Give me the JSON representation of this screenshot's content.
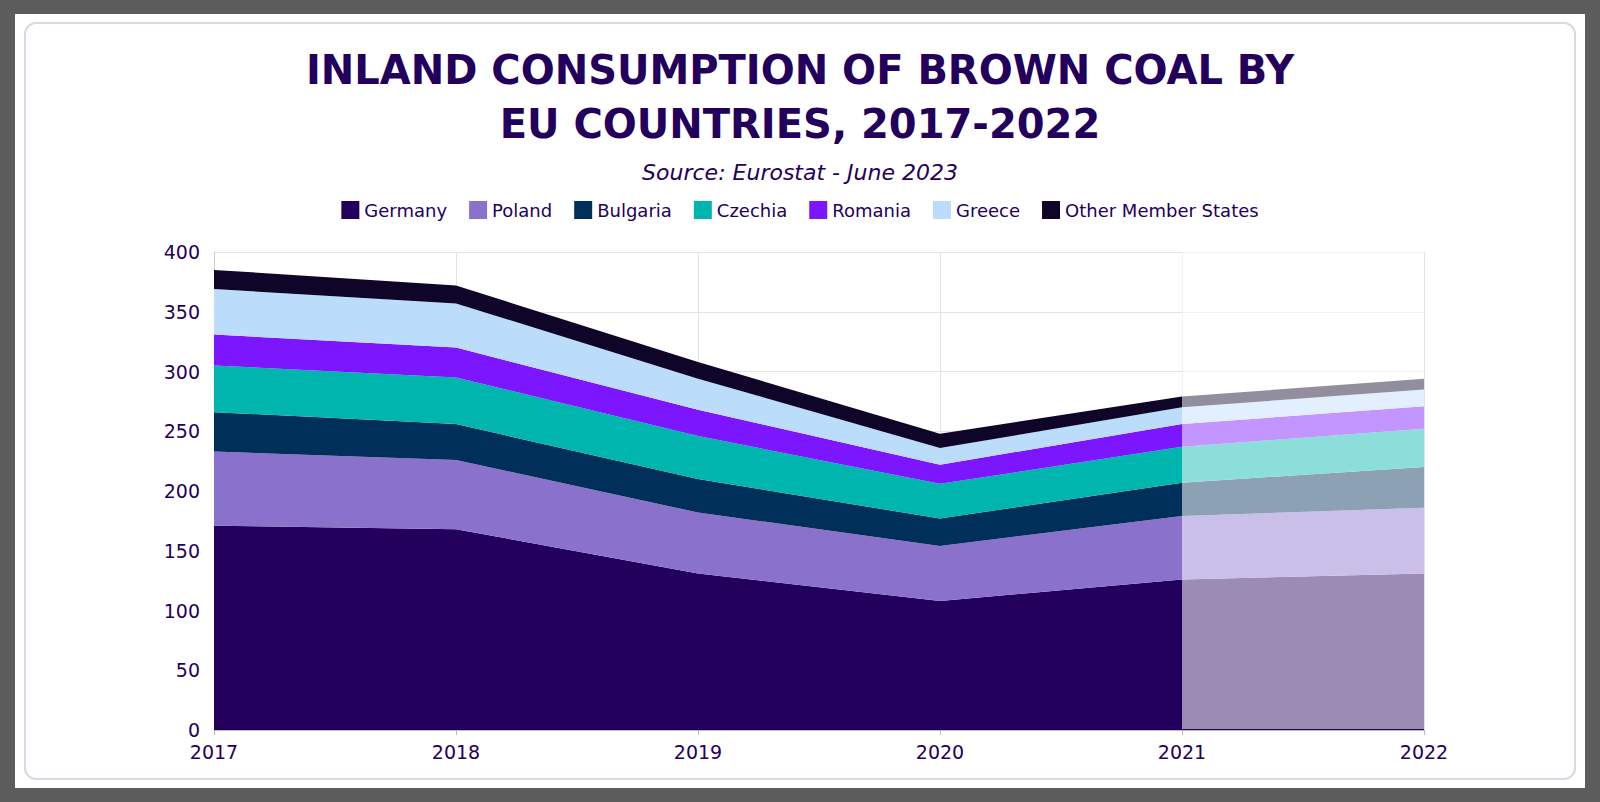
{
  "chart_data": {
    "type": "area",
    "title": "INLAND CONSUMPTION OF BROWN COAL BY\nEU COUNTRIES, 2017-2022",
    "subtitle": "Source: Eurostat - June 2023",
    "categories": [
      "2017",
      "2018",
      "2019",
      "2020",
      "2021",
      "2022"
    ],
    "series": [
      {
        "name": "Germany",
        "color": "#23005c",
        "values": [
          171,
          168,
          131,
          108,
          126,
          131
        ]
      },
      {
        "name": "Poland",
        "color": "#8a72cc",
        "values": [
          62,
          58,
          51,
          46,
          53,
          55
        ]
      },
      {
        "name": "Bulgaria",
        "color": "#00305a",
        "values": [
          33,
          30,
          28,
          23,
          28,
          34
        ]
      },
      {
        "name": "Czechia",
        "color": "#00b5ad",
        "values": [
          39,
          39,
          36,
          29,
          30,
          32
        ]
      },
      {
        "name": "Romania",
        "color": "#7b16ff",
        "values": [
          26,
          25,
          22,
          16,
          19,
          19
        ]
      },
      {
        "name": "Greece",
        "color": "#bcdcfc",
        "values": [
          38,
          37,
          26,
          14,
          14,
          14
        ]
      },
      {
        "name": "Other Member States",
        "color": "#0f0529",
        "values": [
          16,
          15,
          14,
          12,
          9,
          9
        ]
      }
    ],
    "ylim": [
      0,
      400
    ],
    "yticks": [
      0,
      50,
      100,
      150,
      200,
      250,
      300,
      350,
      400
    ],
    "stacked": true,
    "grid": true,
    "legend": "top"
  }
}
